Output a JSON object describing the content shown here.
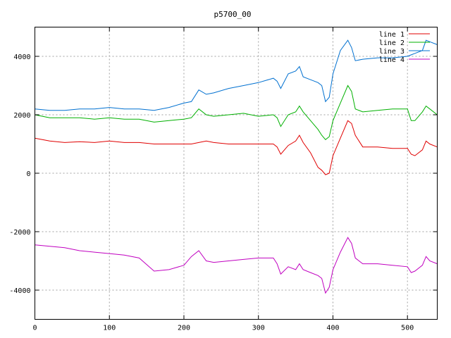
{
  "chart_data": {
    "type": "line",
    "title": "p5700_00",
    "xlim": [
      0,
      540
    ],
    "ylim": [
      -5000,
      5000
    ],
    "x_ticks": [
      0,
      100,
      200,
      300,
      400,
      500
    ],
    "y_ticks": [
      -4000,
      -2000,
      0,
      2000,
      4000
    ],
    "x_tick_labels": [
      "0",
      "100",
      "200",
      "300",
      "400",
      "500"
    ],
    "y_tick_labels": [
      "-4000",
      "-2000",
      "0",
      "2000",
      "4000"
    ],
    "grid": true,
    "legend_position": "top-right",
    "x": [
      0,
      20,
      40,
      60,
      80,
      100,
      120,
      140,
      160,
      180,
      200,
      210,
      220,
      230,
      240,
      260,
      280,
      300,
      320,
      325,
      330,
      340,
      350,
      355,
      360,
      370,
      380,
      385,
      390,
      395,
      400,
      410,
      420,
      425,
      430,
      440,
      460,
      480,
      500,
      505,
      510,
      520,
      525,
      530,
      540
    ],
    "series": [
      {
        "name": "line 1",
        "color": "#e00000",
        "values": [
          1200,
          1100,
          1050,
          1080,
          1050,
          1100,
          1050,
          1050,
          1000,
          1000,
          1000,
          1000,
          1050,
          1100,
          1050,
          1000,
          1000,
          1000,
          1000,
          900,
          650,
          950,
          1100,
          1300,
          1050,
          700,
          200,
          100,
          -50,
          0,
          600,
          1200,
          1800,
          1700,
          1300,
          900,
          900,
          850,
          850,
          650,
          600,
          800,
          1100,
          1000,
          900
        ]
      },
      {
        "name": "line 2",
        "color": "#00b000",
        "values": [
          2000,
          1900,
          1900,
          1900,
          1850,
          1900,
          1850,
          1850,
          1750,
          1800,
          1850,
          1900,
          2200,
          2000,
          1950,
          2000,
          2050,
          1950,
          2000,
          1900,
          1600,
          2000,
          2100,
          2300,
          2100,
          1800,
          1500,
          1300,
          1150,
          1250,
          1800,
          2400,
          3000,
          2800,
          2200,
          2100,
          2150,
          2200,
          2200,
          1800,
          1800,
          2100,
          2300,
          2200,
          2000
        ]
      },
      {
        "name": "line 3",
        "color": "#0070d0",
        "values": [
          2200,
          2150,
          2150,
          2200,
          2200,
          2250,
          2200,
          2200,
          2150,
          2250,
          2400,
          2450,
          2850,
          2700,
          2750,
          2900,
          3000,
          3100,
          3250,
          3150,
          2900,
          3400,
          3500,
          3650,
          3300,
          3200,
          3100,
          3000,
          2450,
          2600,
          3400,
          4200,
          4550,
          4300,
          3850,
          3900,
          3950,
          3950,
          4000,
          4050,
          4100,
          4200,
          4550,
          4500,
          4400
        ]
      },
      {
        "name": "line 4",
        "color": "#c000c0",
        "values": [
          -2450,
          -2500,
          -2550,
          -2650,
          -2700,
          -2750,
          -2800,
          -2900,
          -3350,
          -3300,
          -3150,
          -2850,
          -2650,
          -3000,
          -3050,
          -3000,
          -2950,
          -2900,
          -2900,
          -3100,
          -3450,
          -3200,
          -3300,
          -3100,
          -3300,
          -3400,
          -3500,
          -3600,
          -4100,
          -3900,
          -3300,
          -2700,
          -2200,
          -2400,
          -2900,
          -3100,
          -3100,
          -3150,
          -3200,
          -3400,
          -3350,
          -3150,
          -2850,
          -3000,
          -3100
        ]
      }
    ]
  }
}
